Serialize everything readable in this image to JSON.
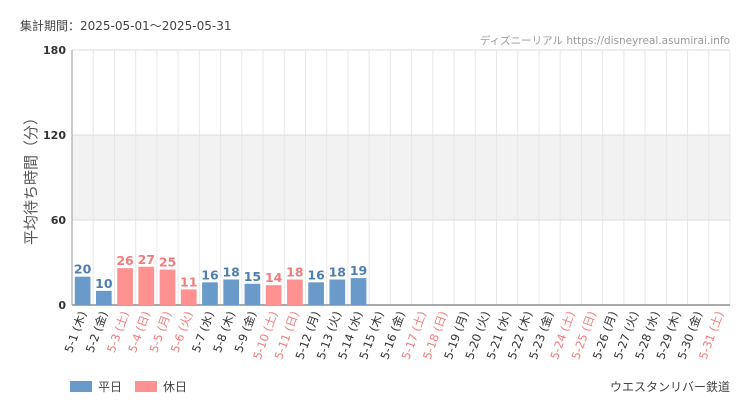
{
  "header": {
    "period": "集計期間：2025-05-01～2025-05-31",
    "watermark": "ディズニーリアル https://disneyreal.asumirai.info"
  },
  "footer": {
    "line_name": "ウエスタンリバー鉄道"
  },
  "colors": {
    "weekday": "#6a9ac9",
    "holiday": "#ff9191",
    "weekday_label": "#4f7fb0",
    "holiday_label": "#f07c7c",
    "band": "#f2f2f2"
  },
  "chart_data": {
    "type": "bar",
    "ylabel": "平均待ち時間（分）",
    "ylim": [
      0,
      180
    ],
    "yticks": [
      0,
      60,
      120,
      180
    ],
    "legend": [
      {
        "name": "平日",
        "kind": "weekday"
      },
      {
        "name": "休日",
        "kind": "holiday"
      }
    ],
    "legend_position": "bottom-left",
    "categories": [
      "5-1 (木)",
      "5-2 (金)",
      "5-3 (土)",
      "5-4 (日)",
      "5-5 (月)",
      "5-6 (火)",
      "5-7 (水)",
      "5-8 (木)",
      "5-9 (金)",
      "5-10 (土)",
      "5-11 (日)",
      "5-12 (月)",
      "5-13 (火)",
      "5-14 (水)",
      "5-15 (木)",
      "5-16 (金)",
      "5-17 (土)",
      "5-18 (日)",
      "5-19 (月)",
      "5-20 (火)",
      "5-21 (水)",
      "5-22 (木)",
      "5-23 (金)",
      "5-24 (土)",
      "5-25 (日)",
      "5-26 (月)",
      "5-27 (火)",
      "5-28 (水)",
      "5-29 (木)",
      "5-30 (金)",
      "5-31 (土)"
    ],
    "day_type": [
      "weekday",
      "weekday",
      "holiday",
      "holiday",
      "holiday",
      "holiday",
      "weekday",
      "weekday",
      "weekday",
      "holiday",
      "holiday",
      "weekday",
      "weekday",
      "weekday",
      "weekday",
      "weekday",
      "holiday",
      "holiday",
      "weekday",
      "weekday",
      "weekday",
      "weekday",
      "weekday",
      "holiday",
      "holiday",
      "weekday",
      "weekday",
      "weekday",
      "weekday",
      "weekday",
      "holiday"
    ],
    "values": [
      20,
      10,
      26,
      27,
      25,
      11,
      16,
      18,
      15,
      14,
      18,
      16,
      18,
      19,
      null,
      null,
      null,
      null,
      null,
      null,
      null,
      null,
      null,
      null,
      null,
      null,
      null,
      null,
      null,
      null,
      null
    ]
  }
}
